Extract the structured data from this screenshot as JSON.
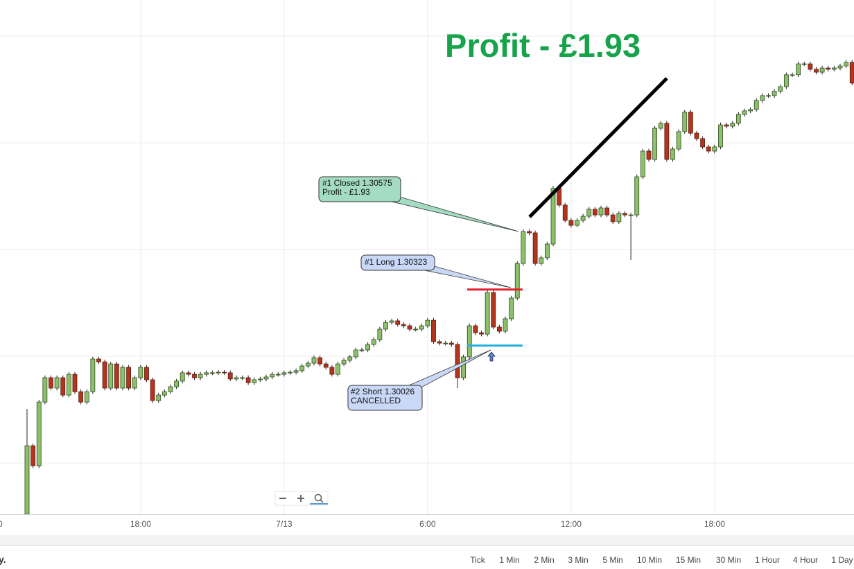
{
  "chart_data": {
    "type": "candlestick",
    "headline": "Profit - £1.93",
    "up_color": "#8dc06b",
    "down_color": "#b2351d",
    "xlim": [
      -11.88,
      23.83
    ],
    "ylim": [
      1.29133,
      1.31856
    ],
    "xticks": [
      {
        "value": -12,
        "label": "0"
      },
      {
        "value": -6,
        "label": "18:00"
      },
      {
        "value": 0,
        "label": "7/13"
      },
      {
        "value": 6,
        "label": "6:00"
      },
      {
        "value": 12,
        "label": "12:00"
      },
      {
        "value": 18,
        "label": "18:00"
      }
    ],
    "x": [
      -10.75,
      -10.5,
      -10.25,
      -10,
      -9.75,
      -9.5,
      -9.25,
      -9,
      -8.75,
      -8.5,
      -8.25,
      -8,
      -7.75,
      -7.5,
      -7.25,
      -7,
      -6.75,
      -6.5,
      -6.25,
      -6,
      -5.75,
      -5.5,
      -5.25,
      -5,
      -4.75,
      -4.5,
      -4.25,
      -4,
      -3.75,
      -3.5,
      -3.25,
      -3,
      -2.75,
      -2.5,
      -2.25,
      -2,
      -1.75,
      -1.5,
      -1.25,
      -1,
      -0.75,
      -0.5,
      -0.25,
      0,
      0.25,
      0.5,
      0.75,
      1,
      1.25,
      1.5,
      1.75,
      2,
      2.25,
      2.5,
      2.75,
      3,
      3.25,
      3.5,
      3.75,
      4,
      4.25,
      4.5,
      4.75,
      5,
      5.25,
      5.5,
      5.75,
      6,
      6.25,
      6.5,
      6.75,
      7,
      7.25,
      7.5,
      7.75,
      8,
      8.25,
      8.5,
      8.75,
      9,
      9.25,
      9.5,
      9.75,
      10,
      10.25,
      10.5,
      10.75,
      11,
      11.25,
      11.5,
      11.75,
      12,
      12.25,
      12.5,
      12.75,
      13,
      13.25,
      13.5,
      13.75,
      14,
      14.25,
      14.5,
      14.75,
      15,
      15.25,
      15.5,
      15.75,
      16,
      16.25,
      16.5,
      16.75,
      17,
      17.25,
      17.5,
      17.75,
      18,
      18.25,
      18.5,
      18.75,
      19,
      19.25,
      19.5,
      19.75,
      20,
      20.25,
      20.5,
      20.75,
      21,
      21.25,
      21.5,
      21.75,
      22,
      22.25,
      22.5,
      22.75,
      23,
      23.25,
      23.5,
      23.75
    ],
    "open": [
      1.29133,
      1.29496,
      1.2939,
      1.29727,
      1.29856,
      1.29801,
      1.29856,
      1.29764,
      1.29874,
      1.29782,
      1.29727,
      1.29782,
      1.29955,
      1.2994,
      1.29801,
      1.29929,
      1.29801,
      1.29911,
      1.29801,
      1.29856,
      1.29911,
      1.29845,
      1.29735,
      1.29764,
      1.29782,
      1.29808,
      1.29838,
      1.29882,
      1.29874,
      1.29856,
      1.29874,
      1.29882,
      1.29882,
      1.29885,
      1.29882,
      1.29849,
      1.29856,
      1.29856,
      1.2983,
      1.29845,
      1.29849,
      1.2986,
      1.29874,
      1.29874,
      1.29882,
      1.29885,
      1.29893,
      1.29918,
      1.29933,
      1.29962,
      1.29929,
      1.29911,
      1.29874,
      1.29929,
      1.29948,
      1.29966,
      1.30003,
      1.30003,
      1.30032,
      1.30058,
      1.30113,
      1.30149,
      1.30157,
      1.30138,
      1.30131,
      1.30113,
      1.30113,
      1.30131,
      1.3016,
      1.30047,
      1.30039,
      1.30039,
      1.30032,
      1.29856,
      1.29966,
      1.30131,
      1.30094,
      1.30087,
      1.30307,
      1.30124,
      1.30102,
      1.30168,
      1.30278,
      1.30461,
      1.3063,
      1.30623,
      1.30461,
      1.30491,
      1.30564,
      1.30858,
      1.3077,
      1.30689,
      1.30663,
      1.30689,
      1.30711,
      1.30748,
      1.30718,
      1.30755,
      1.30718,
      1.30682,
      1.30726,
      1.30718,
      1.30718,
      1.3092,
      1.31056,
      1.31012,
      1.31177,
      1.31203,
      1.31012,
      1.31067,
      1.31159,
      1.31262,
      1.31151,
      1.31122,
      1.31078,
      1.31056,
      1.31078,
      1.31195,
      1.31188,
      1.31203,
      1.3125,
      1.31269,
      1.31276,
      1.31324,
      1.3135,
      1.3135,
      1.31372,
      1.31397,
      1.3146,
      1.3146,
      1.31518,
      1.31518,
      1.31489,
      1.31474,
      1.31496,
      1.31489,
      1.31496,
      1.31507,
      1.31526
    ],
    "high": [
      1.29691,
      1.29508,
      1.29739,
      1.29868,
      1.29868,
      1.29868,
      1.29868,
      1.29886,
      1.29886,
      1.29794,
      1.29794,
      1.29967,
      1.29967,
      1.29952,
      1.29941,
      1.29941,
      1.29923,
      1.29923,
      1.29868,
      1.29923,
      1.29923,
      1.29857,
      1.29776,
      1.29794,
      1.2982,
      1.2985,
      1.29894,
      1.29894,
      1.29886,
      1.29886,
      1.29894,
      1.29894,
      1.29897,
      1.29897,
      1.29894,
      1.29868,
      1.29868,
      1.29868,
      1.29857,
      1.29861,
      1.29872,
      1.29886,
      1.29886,
      1.29894,
      1.29897,
      1.29905,
      1.2993,
      1.29945,
      1.29974,
      1.29974,
      1.29941,
      1.29923,
      1.29941,
      1.2996,
      1.29978,
      1.30015,
      1.30015,
      1.30044,
      1.3007,
      1.30125,
      1.30161,
      1.30169,
      1.30169,
      1.3015,
      1.30143,
      1.30125,
      1.30143,
      1.30172,
      1.30172,
      1.30059,
      1.30051,
      1.30051,
      1.30044,
      1.29978,
      1.30143,
      1.30143,
      1.30106,
      1.30319,
      1.30319,
      1.30136,
      1.3018,
      1.3029,
      1.30473,
      1.30642,
      1.30642,
      1.30635,
      1.30503,
      1.30576,
      1.30872,
      1.3087,
      1.30782,
      1.30701,
      1.30701,
      1.30723,
      1.3076,
      1.3076,
      1.30767,
      1.30767,
      1.3073,
      1.30738,
      1.30738,
      1.3073,
      1.30932,
      1.31068,
      1.31068,
      1.31189,
      1.31215,
      1.31215,
      1.31079,
      1.31171,
      1.31274,
      1.31274,
      1.31163,
      1.31134,
      1.3109,
      1.3109,
      1.31207,
      1.31207,
      1.31215,
      1.31262,
      1.31281,
      1.31288,
      1.31336,
      1.31362,
      1.31362,
      1.31384,
      1.31409,
      1.31472,
      1.31472,
      1.3153,
      1.3153,
      1.3153,
      1.31501,
      1.31508,
      1.31508,
      1.31508,
      1.31519,
      1.31538,
      1.31538
    ],
    "low": [
      1.29133,
      1.29378,
      1.29378,
      1.29715,
      1.29789,
      1.29789,
      1.29752,
      1.29752,
      1.2977,
      1.29715,
      1.29715,
      1.2977,
      1.29928,
      1.29789,
      1.29789,
      1.29789,
      1.29789,
      1.29789,
      1.29789,
      1.29844,
      1.29833,
      1.29723,
      1.29723,
      1.29752,
      1.2977,
      1.29796,
      1.29826,
      1.29862,
      1.29844,
      1.29844,
      1.29862,
      1.2987,
      1.2987,
      1.2987,
      1.29837,
      1.29837,
      1.29844,
      1.29818,
      1.29818,
      1.29833,
      1.29837,
      1.29848,
      1.29862,
      1.29862,
      1.2987,
      1.29873,
      1.29881,
      1.29906,
      1.29921,
      1.29917,
      1.29899,
      1.29862,
      1.29862,
      1.29917,
      1.29936,
      1.29954,
      1.29991,
      1.29991,
      1.3002,
      1.30046,
      1.30101,
      1.30137,
      1.30126,
      1.30119,
      1.30101,
      1.30101,
      1.30101,
      1.30119,
      1.30035,
      1.30027,
      1.30027,
      1.3002,
      1.29801,
      1.29844,
      1.29954,
      1.30082,
      1.30075,
      1.30075,
      1.30112,
      1.3009,
      1.3009,
      1.30156,
      1.30266,
      1.30449,
      1.30611,
      1.30449,
      1.30449,
      1.30479,
      1.30552,
      1.30758,
      1.30677,
      1.30651,
      1.30651,
      1.30677,
      1.30699,
      1.30706,
      1.30706,
      1.30706,
      1.3067,
      1.3067,
      1.30706,
      1.3048,
      1.30706,
      1.30908,
      1.31,
      1.31,
      1.31165,
      1.31,
      1.31,
      1.31055,
      1.31147,
      1.31139,
      1.3111,
      1.31066,
      1.31044,
      1.31044,
      1.31066,
      1.31176,
      1.31176,
      1.31191,
      1.31238,
      1.31257,
      1.31264,
      1.31312,
      1.31338,
      1.31338,
      1.3136,
      1.31385,
      1.31448,
      1.31448,
      1.31506,
      1.31477,
      1.31462,
      1.31462,
      1.31477,
      1.31477,
      1.31484,
      1.31495,
      1.31404
    ],
    "close": [
      1.29496,
      1.2939,
      1.29727,
      1.29856,
      1.29801,
      1.29856,
      1.29764,
      1.29874,
      1.29782,
      1.29727,
      1.29782,
      1.29955,
      1.2994,
      1.29801,
      1.29929,
      1.29801,
      1.29911,
      1.29801,
      1.29856,
      1.29911,
      1.29845,
      1.29735,
      1.29764,
      1.29782,
      1.29808,
      1.29838,
      1.29882,
      1.29874,
      1.29856,
      1.29874,
      1.29882,
      1.29882,
      1.29885,
      1.29882,
      1.29849,
      1.29856,
      1.29856,
      1.2983,
      1.29845,
      1.29849,
      1.2986,
      1.29874,
      1.29874,
      1.29882,
      1.29885,
      1.29893,
      1.29918,
      1.29933,
      1.29962,
      1.29929,
      1.29911,
      1.29874,
      1.29929,
      1.29948,
      1.29966,
      1.30003,
      1.30003,
      1.30032,
      1.30058,
      1.30113,
      1.30149,
      1.30157,
      1.30138,
      1.30131,
      1.30113,
      1.30113,
      1.30131,
      1.3016,
      1.30047,
      1.30039,
      1.30039,
      1.30032,
      1.29856,
      1.29966,
      1.30131,
      1.30094,
      1.30087,
      1.30307,
      1.30124,
      1.30102,
      1.30168,
      1.30278,
      1.30461,
      1.3063,
      1.30623,
      1.30461,
      1.30491,
      1.30564,
      1.30858,
      1.3077,
      1.30689,
      1.30663,
      1.30689,
      1.30711,
      1.30748,
      1.30718,
      1.30755,
      1.30718,
      1.30682,
      1.30726,
      1.30718,
      1.30718,
      1.3092,
      1.31056,
      1.31012,
      1.31177,
      1.31203,
      1.31012,
      1.31067,
      1.31159,
      1.31262,
      1.31151,
      1.31122,
      1.31078,
      1.31056,
      1.31078,
      1.31195,
      1.31188,
      1.31203,
      1.3125,
      1.31269,
      1.31276,
      1.31324,
      1.3135,
      1.3135,
      1.31372,
      1.31397,
      1.3146,
      1.3146,
      1.31518,
      1.31518,
      1.31489,
      1.31474,
      1.31496,
      1.31489,
      1.31496,
      1.31507,
      1.31526,
      1.31416
    ],
    "orders": [
      {
        "label": "#1 Closed",
        "price": 1.30575,
        "note": "Profit - £1.93"
      },
      {
        "label": "#1 Long",
        "price": 1.30323,
        "color": "#e3202b"
      },
      {
        "label": "#2 Short",
        "price": 1.30026,
        "note": "CANCELLED",
        "color": "#20aee0"
      }
    ]
  },
  "footer": {
    "left": "y.",
    "timeframes": [
      "Tick",
      "1 Min",
      "2 Min",
      "3 Min",
      "5 Min",
      "10 Min",
      "15 Min",
      "30 Min",
      "1 Hour",
      "4 Hour",
      "1 Day"
    ]
  }
}
